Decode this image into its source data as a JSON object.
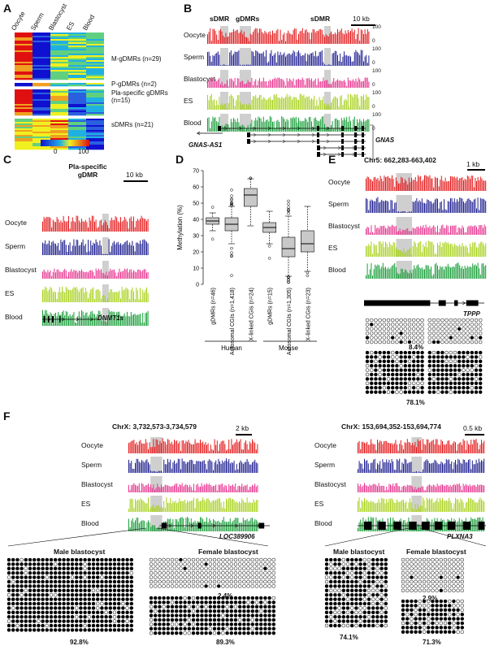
{
  "panels": [
    "A",
    "B",
    "C",
    "D",
    "E",
    "F"
  ],
  "colors": {
    "oocyte": "#e31a1c",
    "sperm": "#1f1f8f",
    "blastocyst": "#e6358f",
    "es": "#a8d11c",
    "blood": "#1a9e3a",
    "shade": "#cfcfcf"
  },
  "A": {
    "columns": [
      "Oocyte",
      "Sperm",
      "Blastocyst",
      "ES",
      "Blood"
    ],
    "groups": [
      "M-gDMRs (n=29)",
      "P-gDMRs (n=2)",
      "Pla-specific gDMRs (n=15)",
      "sDMRs (n=21)"
    ],
    "scale": [
      "0",
      "100"
    ]
  },
  "B": {
    "region_labels": [
      "sDMR",
      "gDMRs",
      "sDMR"
    ],
    "scale_bar": "10 kb",
    "tracks": [
      "Oocyte",
      "Sperm",
      "Blastocyst",
      "ES",
      "Blood"
    ],
    "axis": [
      "100",
      "0"
    ],
    "genes": [
      "GNAS-AS1",
      "GNAS"
    ]
  },
  "C": {
    "region_label": "Pla-specific gDMR",
    "scale_bar": "10 kb",
    "tracks": [
      "Oocyte",
      "Sperm",
      "Blastocyst",
      "ES",
      "Blood"
    ],
    "gene": "DNMT1s"
  },
  "D": {
    "ylabel": "Methylation (%)",
    "yticks": [
      "0",
      "10",
      "20",
      "30",
      "40",
      "50",
      "60",
      "70"
    ],
    "categories": [
      "gDMRs (n=46)",
      "Autosomal CGIs (n=1,418)",
      "X-linked CGIs (n=24)",
      "gDMRs (n=15)",
      "Autosomal CGIs (n=1,305)",
      "X-linked CGIs (n=23)"
    ],
    "species": [
      "Human",
      "Mouse"
    ]
  },
  "E": {
    "title": "Chr5: 662,283-663,402",
    "scale_bar": "1 kb",
    "tracks": [
      "Oocyte",
      "Sperm",
      "Blastocyst",
      "ES",
      "Blood"
    ],
    "gene": "TPPP",
    "pct_top": "8.4%",
    "pct_bottom": "78.1%"
  },
  "F1": {
    "title": "ChrX: 3,732,573-3,734,579",
    "scale_bar": "2 kb",
    "tracks": [
      "Oocyte",
      "Sperm",
      "Blastocyst",
      "ES",
      "Blood"
    ],
    "gene": "LOC389906",
    "male": "Male blastocyst",
    "female": "Female blastocyst",
    "pct_male": "92.8%",
    "pct_female_top": "2.4%",
    "pct_female_bottom": "89.3%"
  },
  "F2": {
    "title": "ChrX: 153,694,352-153,694,774",
    "scale_bar": "0.5 kb",
    "tracks": [
      "Oocyte",
      "Sperm",
      "Blastocyst",
      "ES",
      "Blood"
    ],
    "gene": "PLXNA3",
    "male": "Male blastocyst",
    "female": "Female blastocyst",
    "pct_male": "74.1%",
    "pct_female_top": "2.9%",
    "pct_female_bottom": "71.3%"
  },
  "chart_data": {
    "type": "box",
    "ylabel": "Methylation (%)",
    "ylim": [
      0,
      70
    ],
    "categories": [
      "gDMRs (n=46)",
      "Autosomal CGIs (n=1,418)",
      "X-linked CGIs (n=24)",
      "gDMRs (n=15)",
      "Autosomal CGIs (n=1,305)",
      "X-linked CGIs (n=23)"
    ],
    "boxes": [
      {
        "min": 33,
        "q1": 37,
        "median": 39,
        "q3": 41,
        "max": 44
      },
      {
        "min": 25,
        "q1": 33,
        "median": 37,
        "q3": 41,
        "max": 48
      },
      {
        "min": 36,
        "q1": 48,
        "median": 55,
        "q3": 59,
        "max": 65
      },
      {
        "min": 25,
        "q1": 32,
        "median": 35,
        "q3": 38,
        "max": 45
      },
      {
        "min": 5,
        "q1": 17,
        "median": 22,
        "q3": 29,
        "max": 42
      },
      {
        "min": 8,
        "q1": 20,
        "median": 25,
        "q3": 33,
        "max": 48
      }
    ]
  }
}
